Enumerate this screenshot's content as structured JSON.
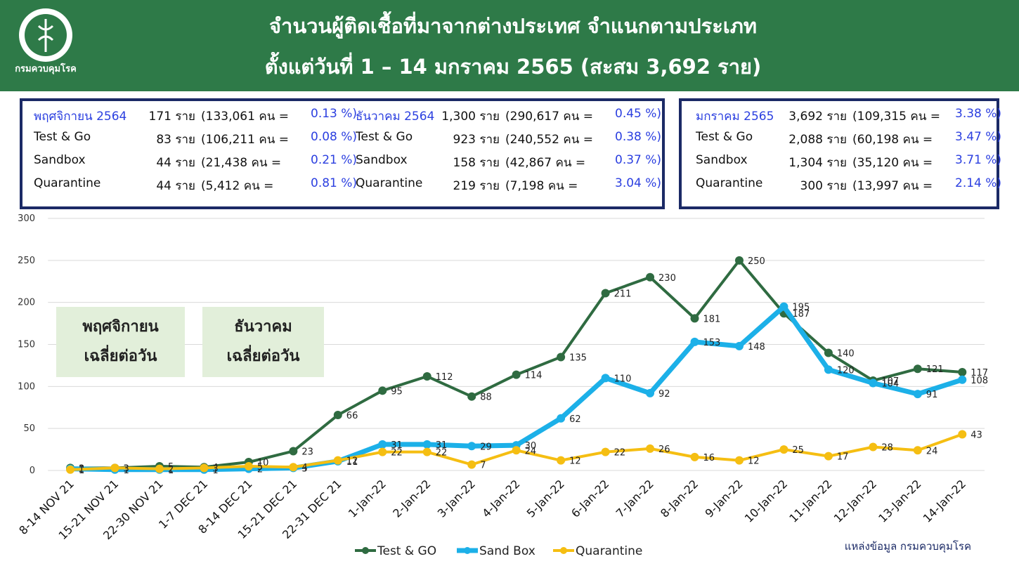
{
  "header": {
    "title_lines": [
      "จำนวนผู้ติดเชื้อที่มาจากต่างประเทศ จำแนกตามประเภท",
      "ตั้งแต่วันที่  1 – 14  มกราคม  2565 (สะสม 3,692 ราย)"
    ],
    "logo_text": "กรมควบคุมโรค"
  },
  "summary": {
    "boxes": [
      {
        "rows": [
          [
            "พฤศจิกายน 2564",
            "171 ราย",
            "(133,061 คน =",
            "0.13 %)"
          ],
          [
            "Test & Go",
            "83 ราย",
            "(106,211 คน =",
            "0.08 %)"
          ],
          [
            "Sandbox",
            "44 ราย",
            "(21,438 คน =",
            "0.21 %)"
          ],
          [
            "Quarantine",
            "44 ราย",
            "(5,412 คน =",
            "0.81 %)"
          ]
        ]
      },
      {
        "rows": [
          [
            "ธันวาคม 2564",
            "1,300 ราย",
            "(290,617 คน =",
            "0.45 %)"
          ],
          [
            "Test & Go",
            "923 ราย",
            "(240,552 คน =",
            "0.38 %)"
          ],
          [
            "Sandbox",
            "158 ราย",
            "(42,867 คน =",
            "0.37 %)"
          ],
          [
            "Quarantine",
            "219 ราย",
            "(7,198 คน =",
            "3.04 %)"
          ]
        ]
      },
      {
        "rows": [
          [
            "มกราคม 2565",
            "3,692 ราย",
            "(109,315 คน =",
            "3.38 %)"
          ],
          [
            "Test & Go",
            "2,088 ราย",
            "(60,198 คน =",
            "3.47 %)"
          ],
          [
            "Sandbox",
            "1,304 ราย",
            "(35,120 คน =",
            "3.71 %)"
          ],
          [
            "Quarantine",
            "300 ราย",
            "(13,997 คน =",
            "2.14 %)"
          ]
        ]
      }
    ]
  },
  "chart_data": {
    "type": "line",
    "categories": [
      "8-14 NOV 21",
      "15-21 NOV 21",
      "22-30 NOV 21",
      "1-7 DEC 21",
      "8-14 DEC 21",
      "15-21 DEC 21",
      "22-31 DEC 21",
      "1-Jan-22",
      "2-Jan-22",
      "3-Jan-22",
      "4-Jan-22",
      "5-Jan-22",
      "6-Jan-22",
      "7-Jan-22",
      "8-Jan-22",
      "9-Jan-22",
      "10-Jan-22",
      "11-Jan-22",
      "12-Jan-22",
      "13-Jan-22",
      "14-Jan-22"
    ],
    "series": [
      {
        "name": "Test & GO",
        "color": "#2f6b41",
        "values": [
          3,
          3,
          5,
          4,
          10,
          23,
          66,
          95,
          112,
          88,
          114,
          135,
          211,
          230,
          181,
          250,
          187,
          140,
          107,
          121,
          117
        ]
      },
      {
        "name": "Sand Box",
        "color": "#1cb0e8",
        "values": [
          2,
          1,
          1,
          1,
          2,
          3,
          11,
          31,
          31,
          29,
          30,
          62,
          110,
          92,
          153,
          148,
          195,
          120,
          104,
          91,
          108
        ]
      },
      {
        "name": "Quarantine",
        "color": "#f5be12",
        "values": [
          1,
          3,
          2,
          3,
          5,
          4,
          12,
          22,
          22,
          7,
          24,
          12,
          22,
          26,
          16,
          12,
          25,
          17,
          28,
          24,
          43
        ]
      }
    ],
    "ylim": [
      0,
      300
    ],
    "yticks": [
      0,
      50,
      100,
      150,
      200,
      250,
      300
    ],
    "grid": true,
    "annotations": [
      [
        "พฤศจิกายน",
        "เฉลี่ยต่อวัน"
      ],
      [
        "ธันวาคม",
        "เฉลี่ยต่อวัน"
      ]
    ]
  },
  "source": "แหล่งข้อมูล กรมควบคุมโรค"
}
